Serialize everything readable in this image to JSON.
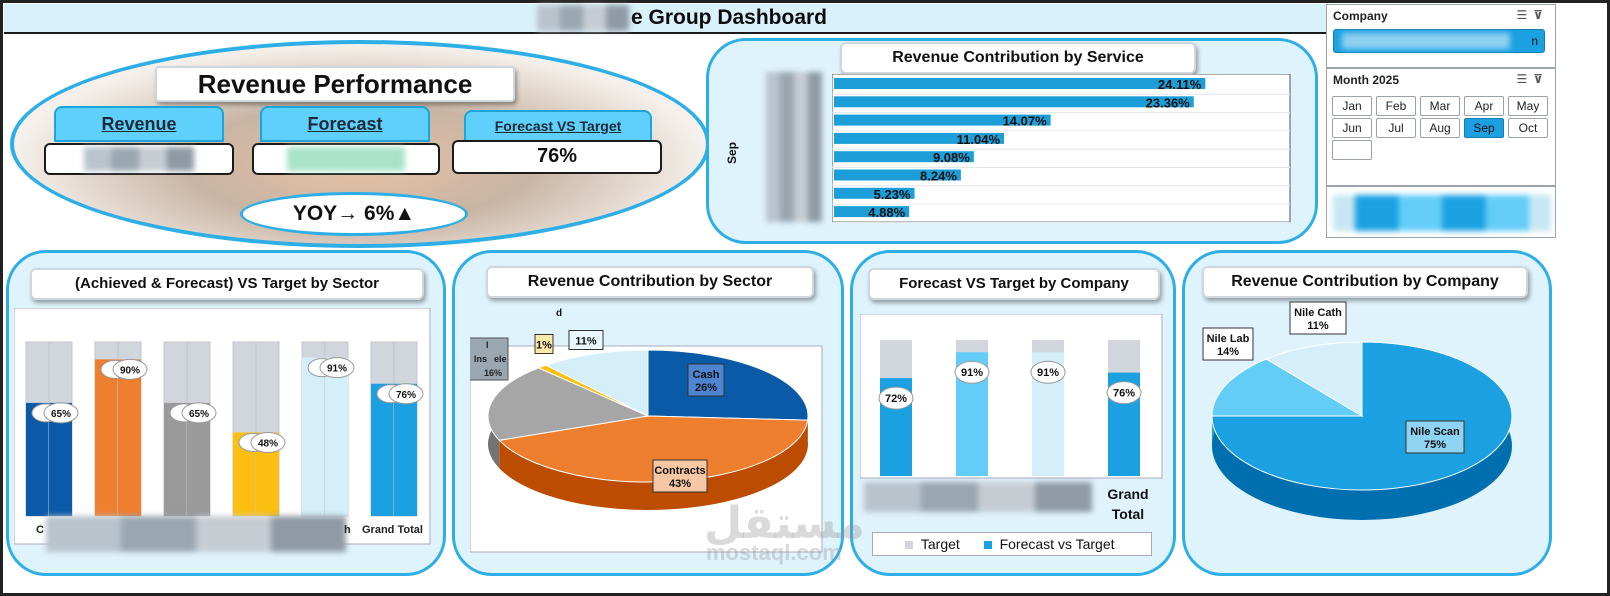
{
  "dashboard": {
    "title": "e Group Dashboard"
  },
  "revenue_performance": {
    "title": "Revenue Performance",
    "revenue_label": "Revenue",
    "forecast_label": "Forecast",
    "fvt_label": "Forecast VS Target",
    "fvt_value": "76%",
    "yoy": "YOY→ 6%▲"
  },
  "company_slicer": {
    "title": "Company",
    "selected_suffix": "n"
  },
  "month_slicer": {
    "title": "Month 2025",
    "months": [
      "Jan",
      "Feb",
      "Mar",
      "Apr",
      "May",
      "Jun",
      "Jul",
      "Aug",
      "Sep",
      "Oct"
    ],
    "selected": "Sep"
  },
  "service_chart": {
    "title": "Revenue Contribution by Service",
    "axis_category": "Sep",
    "chart_data": {
      "type": "bar",
      "values": [
        24.11,
        23.36,
        14.07,
        11.04,
        9.08,
        8.24,
        5.23,
        4.88
      ],
      "data_labels": [
        "24.11%",
        "23.36%",
        "14.07%",
        "11.04%",
        "9.08%",
        "8.24%",
        "5.23%",
        "4.88%"
      ]
    }
  },
  "sector_target_chart": {
    "title": "(Achieved & Forecast) VS Target by Sector",
    "visible_axis_labels": [
      "C",
      "h",
      "Grand Total"
    ],
    "chart_data": {
      "type": "bar",
      "series": [
        {
          "values": [
            65,
            90,
            65,
            48,
            91,
            76
          ]
        },
        {
          "values": [
            65,
            90,
            65,
            48,
            91,
            76
          ]
        }
      ],
      "colors": [
        "#0b5aa8",
        "#ee7f2f",
        "#9a9a9a",
        "#fcbf12",
        "#d4effa",
        "#1ba1e2"
      ],
      "data_labels": [
        "65%",
        "90%",
        "65%",
        "48%",
        "91%",
        "76%"
      ],
      "ylim": [
        0,
        100
      ]
    }
  },
  "sector_pie": {
    "title": "Revenue Contribution by Sector",
    "chart_data": {
      "type": "pie",
      "slices": [
        {
          "label": "Cash",
          "value": 26,
          "color": "#0b5aa8"
        },
        {
          "label": "Contracts",
          "value": 43,
          "color": "#ee7f2f"
        },
        {
          "label": "",
          "value": 19,
          "color": "#a6a6a6"
        },
        {
          "label": "",
          "value": 1,
          "color": "#fcbf12"
        },
        {
          "label": "",
          "value": 11,
          "color": "#d4effa"
        }
      ],
      "data_labels": [
        "26%",
        "43%",
        "",
        "1%",
        "11%"
      ],
      "partial_labels": [
        "d",
        "I",
        "Ins",
        "ele",
        "16%"
      ]
    }
  },
  "company_target_chart": {
    "title": "Forecast VS Target by Company",
    "x_label_last": "Grand Total",
    "legend": [
      "Target",
      "Forecast vs Target"
    ],
    "chart_data": {
      "type": "bar",
      "values": [
        72,
        91,
        91,
        76
      ],
      "data_labels": [
        "72%",
        "91%",
        "91%",
        "76%"
      ],
      "colors": [
        "#1ba1e2",
        "#63cdf7",
        "#d4effa",
        "#1ba1e2"
      ],
      "ylim": [
        0,
        100
      ]
    }
  },
  "company_pie": {
    "title": "Revenue Contribution by Company",
    "chart_data": {
      "type": "pie",
      "slices": [
        {
          "label": "Nile Scan",
          "value": 75,
          "color": "#1ba1e2"
        },
        {
          "label": "Nile Lab",
          "value": 14,
          "color": "#63cdf7"
        },
        {
          "label": "Nile Cath",
          "value": 11,
          "color": "#d4effa"
        }
      ],
      "data_labels": [
        "75%",
        "14%",
        "11%"
      ]
    }
  },
  "watermark": {
    "arabic": "مستقل",
    "latin": "mostaql.com"
  }
}
